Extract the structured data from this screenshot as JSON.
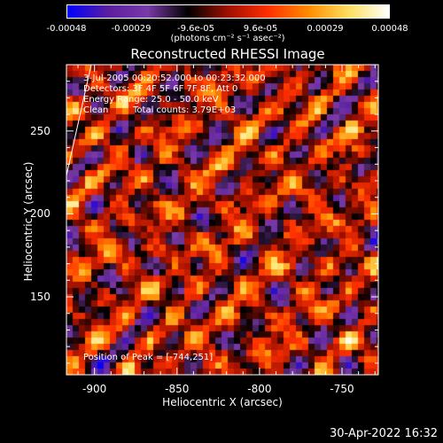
{
  "colorbar": {
    "colors": [
      "#0000ff",
      "#5a1ea0",
      "#7a3aa8",
      "#000000",
      "#a01000",
      "#ff3000",
      "#ff8c00",
      "#ffe060",
      "#ffffff"
    ],
    "ticks": [
      "-0.00048",
      "-0.00029",
      "-9.6e-05",
      "9.6e-05",
      "0.00029",
      "0.00048"
    ],
    "units": "(photons cm⁻² s⁻¹ asec⁻²)"
  },
  "chart_data": {
    "type": "heatmap",
    "title": "Reconstructed RHESSI Image",
    "xlabel": "Heliocentric X (arcsec)",
    "ylabel": "Heliocentric Y (arcsec)",
    "xlim": [
      -917,
      -728
    ],
    "ylim": [
      103,
      290
    ],
    "x_ticks": [
      "-900",
      "-850",
      "-800",
      "-750"
    ],
    "y_ticks": [
      "250",
      "200",
      "150"
    ],
    "annotations": {
      "date_range": "3-Jul-2005 00:20:52.000 to 00:23:32.000",
      "detectors": "Detectors: 3F 4F 5F 6F 7F 8F, Att 0",
      "energy": "Energy Range: 25.0 - 50.0 keV",
      "method": "Clean",
      "total_counts": "Total counts: 3.79E+03",
      "peak": "Position of Peak = [-744,251]"
    },
    "peak": {
      "x": -744,
      "y": 251
    }
  },
  "footer": {
    "timestamp": "30-Apr-2022 16:32"
  }
}
